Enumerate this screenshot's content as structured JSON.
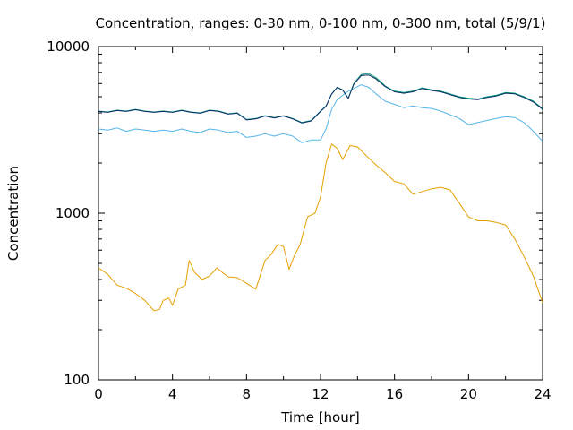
{
  "chart_data": {
    "type": "line",
    "title": "Concentration, ranges: 0-30 nm, 0-100 nm, 0-300 nm, total (5/9/1)",
    "xlabel": "Time [hour]",
    "ylabel": "Concentration",
    "xlim": [
      0,
      24
    ],
    "ylim": [
      100,
      10000
    ],
    "y_scale": "log",
    "grid": false,
    "xticks": [
      0,
      4,
      8,
      12,
      16,
      20,
      24
    ],
    "xtick_labels": [
      "0",
      "4",
      "8",
      "12",
      "16",
      "20",
      "24"
    ],
    "yticks": [
      100,
      1000,
      10000
    ],
    "ytick_labels": [
      "100",
      "1000",
      "10000"
    ],
    "series": [
      {
        "color": "#e69f00",
        "x": [
          0,
          0.5,
          1,
          1.5,
          2,
          2.5,
          3,
          3.3,
          3.5,
          3.8,
          4,
          4.3,
          4.7,
          4.9,
          5.2,
          5.6,
          6,
          6.4,
          6.7,
          7,
          7.5,
          8,
          8.5,
          9,
          9.3,
          9.7,
          10,
          10.3,
          10.6,
          10.9,
          11.3,
          11.7,
          12,
          12.3,
          12.6,
          12.9,
          13.2,
          13.6,
          14,
          14.5,
          15,
          15.5,
          16,
          16.5,
          17,
          17.5,
          18,
          18.5,
          19,
          19.5,
          20,
          20.5,
          21,
          21.5,
          22,
          22.5,
          23,
          23.5,
          24
        ],
        "values": [
          470,
          430,
          370,
          355,
          330,
          300,
          260,
          265,
          300,
          310,
          280,
          350,
          370,
          520,
          440,
          400,
          420,
          470,
          440,
          415,
          410,
          380,
          350,
          520,
          560,
          650,
          630,
          460,
          560,
          650,
          950,
          1000,
          1250,
          2000,
          2600,
          2450,
          2100,
          2550,
          2500,
          2200,
          1950,
          1750,
          1550,
          1500,
          1300,
          1350,
          1400,
          1430,
          1380,
          1150,
          950,
          900,
          900,
          880,
          850,
          700,
          550,
          420,
          290
        ]
      },
      {
        "color": "#56b4e9",
        "x": [
          0,
          0.5,
          1,
          1.5,
          2,
          2.5,
          3,
          3.5,
          4,
          4.5,
          5,
          5.5,
          6,
          6.5,
          7,
          7.5,
          8,
          8.5,
          9,
          9.5,
          10,
          10.5,
          11,
          11.5,
          12,
          12.3,
          12.6,
          12.9,
          13.2,
          13.5,
          13.8,
          14.2,
          14.6,
          15,
          15.5,
          16,
          16.5,
          17,
          17.5,
          18,
          18.5,
          19,
          19.5,
          20,
          20.5,
          21,
          21.5,
          22,
          22.5,
          23,
          23.5,
          24
        ],
        "values": [
          3200,
          3150,
          3250,
          3100,
          3200,
          3150,
          3100,
          3150,
          3100,
          3200,
          3100,
          3050,
          3200,
          3150,
          3050,
          3100,
          2850,
          2900,
          3000,
          2900,
          3000,
          2900,
          2650,
          2750,
          2750,
          3200,
          4200,
          4800,
          5100,
          5400,
          5600,
          5900,
          5700,
          5200,
          4700,
          4500,
          4300,
          4400,
          4300,
          4250,
          4100,
          3900,
          3700,
          3400,
          3500,
          3600,
          3700,
          3800,
          3750,
          3500,
          3100,
          2700
        ]
      },
      {
        "color": "#009e73",
        "x": [
          0,
          0.5,
          1,
          1.5,
          2,
          2.5,
          3,
          3.5,
          4,
          4.5,
          5,
          5.5,
          6,
          6.5,
          7,
          7.5,
          8,
          8.5,
          9,
          9.5,
          10,
          10.5,
          11,
          11.5,
          12,
          12.3,
          12.6,
          12.9,
          13.2,
          13.5,
          13.8,
          14.2,
          14.6,
          15,
          15.5,
          16,
          16.5,
          17,
          17.5,
          18,
          18.5,
          19,
          19.5,
          20,
          20.5,
          21,
          21.5,
          22,
          22.5,
          23,
          23.5,
          24
        ],
        "values": [
          4100,
          4050,
          4150,
          4100,
          4200,
          4100,
          4050,
          4100,
          4050,
          4150,
          4050,
          4000,
          4150,
          4100,
          3950,
          4000,
          3650,
          3700,
          3850,
          3750,
          3850,
          3700,
          3500,
          3600,
          4100,
          4400,
          5200,
          5700,
          5500,
          4900,
          6000,
          6800,
          6900,
          6500,
          5800,
          5400,
          5300,
          5400,
          5650,
          5500,
          5400,
          5200,
          5000,
          4900,
          4850,
          5000,
          5100,
          5300,
          5250,
          5000,
          4700,
          4250
        ]
      },
      {
        "color": "#0b2a6b",
        "x": [
          0,
          0.5,
          1,
          1.5,
          2,
          2.5,
          3,
          3.5,
          4,
          4.5,
          5,
          5.5,
          6,
          6.5,
          7,
          7.5,
          8,
          8.5,
          9,
          9.5,
          10,
          10.5,
          11,
          11.5,
          12,
          12.3,
          12.6,
          12.9,
          13.2,
          13.5,
          13.8,
          14.2,
          14.6,
          15,
          15.5,
          16,
          16.5,
          17,
          17.5,
          18,
          18.5,
          19,
          19.5,
          20,
          20.5,
          21,
          21.5,
          22,
          22.5,
          23,
          23.5,
          24
        ],
        "values": [
          4080,
          4030,
          4130,
          4080,
          4180,
          4080,
          4030,
          4080,
          4030,
          4130,
          4030,
          3980,
          4130,
          4080,
          3930,
          3980,
          3630,
          3680,
          3830,
          3730,
          3830,
          3680,
          3480,
          3580,
          4080,
          4380,
          5180,
          5680,
          5480,
          4880,
          5950,
          6700,
          6750,
          6400,
          5750,
          5350,
          5250,
          5350,
          5600,
          5450,
          5350,
          5150,
          4950,
          4850,
          4800,
          4950,
          5050,
          5250,
          5200,
          4950,
          4650,
          4200
        ]
      }
    ]
  }
}
